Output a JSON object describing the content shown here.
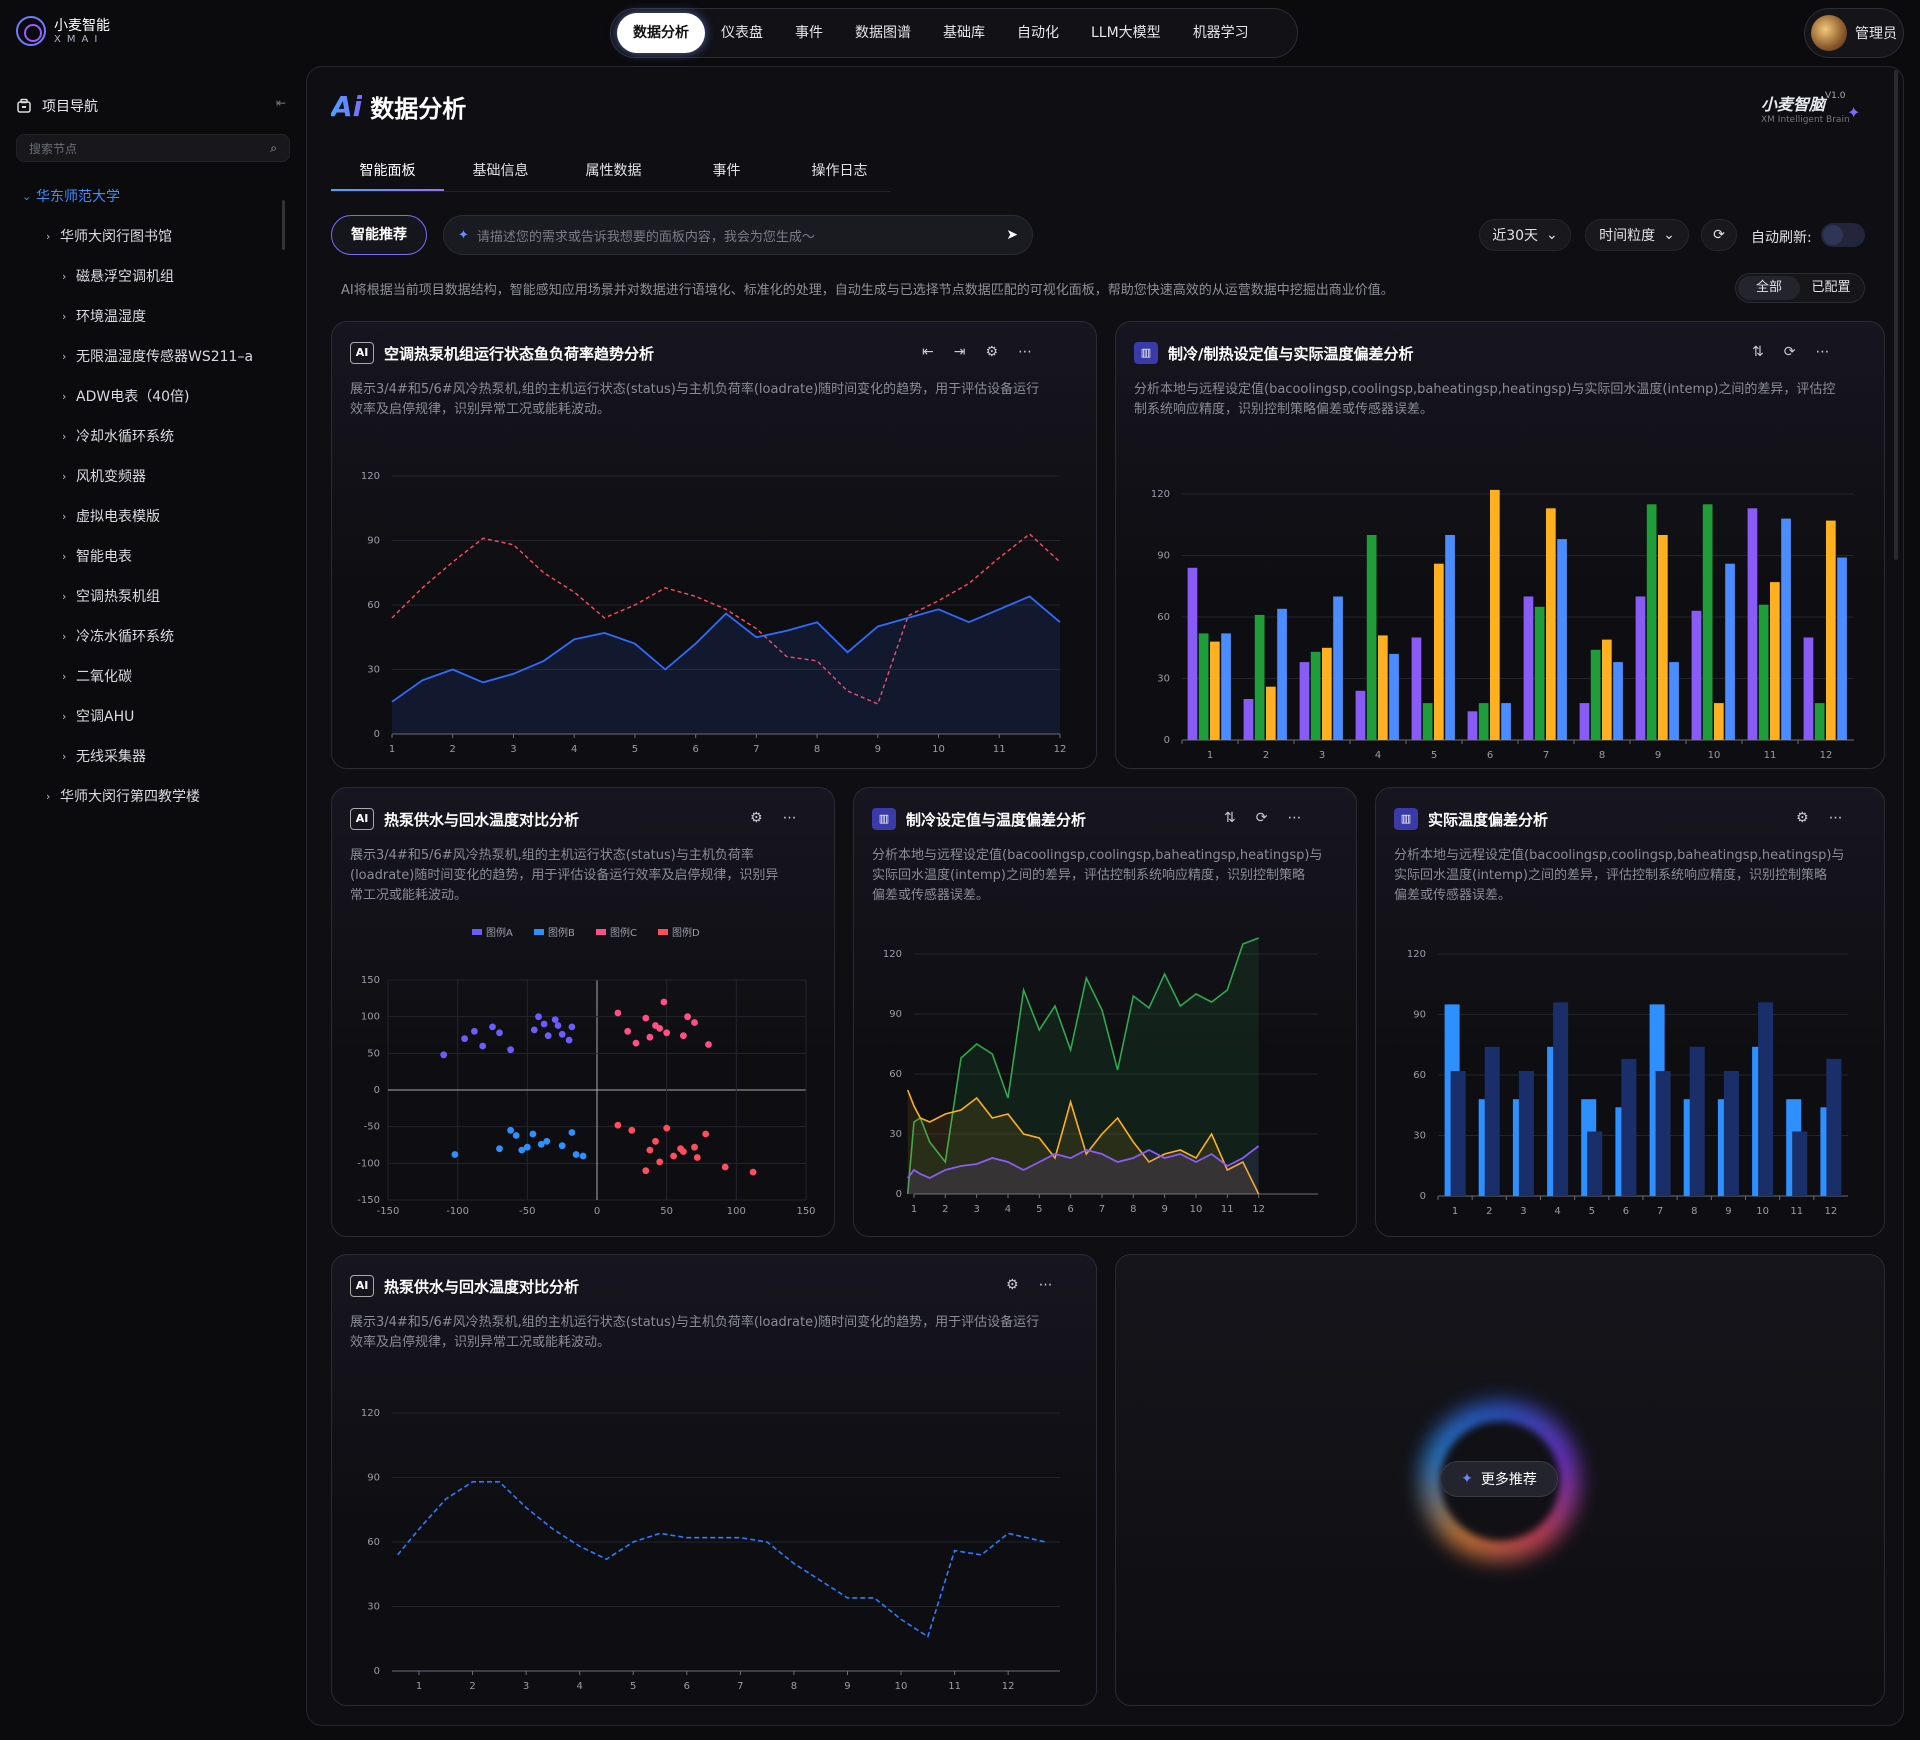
{
  "app": {
    "logo_title": "小麦智能",
    "logo_sub": "XMAI"
  },
  "nav": {
    "items": [
      "数据分析",
      "仪表盘",
      "事件",
      "数据图谱",
      "基础库",
      "自动化",
      "LLM大模型",
      "机器学习"
    ],
    "active": 0
  },
  "user": {
    "name": "管理员"
  },
  "sidebar": {
    "title": "项目导航",
    "search_placeholder": "搜索节点",
    "root": "华东师范大学",
    "level1": "华师大闵行图书馆",
    "children": [
      "磁悬浮空调机组",
      "环境温湿度",
      "无限温湿度传感器WS211–a",
      "ADW电表（40倍)",
      "冷却水循环系统",
      "风机变频器",
      "虚拟电表模版",
      "智能电表",
      "空调热泵机组",
      "冷冻水循环系统",
      "二氧化碳",
      "空调AHU",
      "无线采集器"
    ],
    "sibling": "华师大闵行第四教学楼"
  },
  "page": {
    "title": "数据分析",
    "brand": "小麦智脑",
    "brand_ver": "V1.0",
    "brand_sub": "XM Intelligent Brain",
    "tabs": [
      "智能面板",
      "基础信息",
      "属性数据",
      "事件",
      "操作日志"
    ],
    "recommend_btn": "智能推荐",
    "prompt_placeholder": "请描述您的需求或告诉我想要的面板内容，我会为您生成～",
    "range": "近30天",
    "granularity": "时间粒度",
    "auto_refresh": "自动刷新:",
    "description": "AI将根据当前项目数据结构，智能感知应用场景并对数据进行语境化、标准化的处理，自动生成与已选择节点数据匹配的可视化面板，帮助您快速高效的从运营数据中挖掘出商业价值。",
    "filter": [
      "全部",
      "已配置"
    ],
    "more": "更多推荐"
  },
  "cards": [
    {
      "title": "空调热泵机组运行状态鱼负荷率趋势分析",
      "desc_lines": [
        "展示3/4#和5/6#风冷热泵机,组的主机运行状态(status)与主机负荷率(loadrate)随时间变化的趋势，用于评估设备运行",
        "效率及启停规律，识别异常工况或能耗波动。"
      ]
    },
    {
      "title": "制冷/制热设定值与实际温度偏差分析",
      "desc_lines": [
        "分析本地与远程设定值(bacoolingsp,coolingsp,baheatingsp,heatingsp)与实际回水温度(intemp)之间的差异，评估控",
        "制系统响应精度，识别控制策略偏差或传感器误差。"
      ]
    },
    {
      "title": "热泵供水与回水温度对比分析",
      "desc_lines": [
        "展示3/4#和5/6#风冷热泵机,组的主机运行状态(status)与主机负荷率",
        "(loadrate)随时间变化的趋势，用于评估设备运行效率及启停规律，识别异",
        "常工况或能耗波动。"
      ]
    },
    {
      "title": "制冷设定值与温度偏差分析",
      "desc_lines": [
        "分析本地与远程设定值(bacoolingsp,coolingsp,baheatingsp,heatingsp)与",
        "实际回水温度(intemp)之间的差异，评估控制系统响应精度，识别控制策略",
        "偏差或传感器误差。"
      ]
    },
    {
      "title": "实际温度偏差分析",
      "desc_lines": [
        "分析本地与远程设定值(bacoolingsp,coolingsp,baheatingsp,heatingsp)与",
        "实际回水温度(intemp)之间的差异，评估控制系统响应精度，识别控制策略",
        "偏差或传感器误差。"
      ]
    },
    {
      "title": "热泵供水与回水温度对比分析",
      "desc_lines": [
        "展示3/4#和5/6#风冷热泵机,组的主机运行状态(status)与主机负荷率(loadrate)随时间变化的趋势，用于评估设备运行",
        "效率及启停规律，识别异常工况或能耗波动。"
      ]
    }
  ],
  "colors": {
    "blue": "#2f6bff",
    "red": "#ff4d5e",
    "purple": "#8a5cf6",
    "green": "#1f9d3a",
    "orange": "#ffb020",
    "skyblue": "#4b8dff",
    "lightblue": "#2e8fff",
    "pink": "#ff4d88"
  },
  "chart_data": [
    {
      "type": "line",
      "x": [
        1,
        1.5,
        2,
        2.5,
        3,
        3.5,
        4,
        4.5,
        5,
        5.5,
        6,
        6.5,
        7,
        7.5,
        8,
        8.5,
        9,
        9.5,
        10,
        10.5,
        11,
        11.5,
        12
      ],
      "series": [
        {
          "values": [
            54,
            68,
            80,
            91,
            88,
            75,
            66,
            54,
            60,
            68,
            64,
            58,
            49,
            36,
            34,
            20,
            14,
            55,
            62,
            70,
            82,
            93,
            80
          ]
        },
        {
          "values": [
            15,
            25,
            30,
            24,
            28,
            34,
            44,
            47,
            42,
            30,
            42,
            56,
            45,
            48,
            52,
            38,
            50,
            54,
            58,
            52,
            58,
            64,
            52
          ]
        }
      ],
      "ylim": [
        0,
        120
      ],
      "yticks": [
        0,
        30,
        60,
        90,
        120
      ],
      "grid": true
    },
    {
      "type": "bar",
      "categories": [
        "1",
        "2",
        "3",
        "4",
        "5",
        "6",
        "7",
        "8",
        "9",
        "10",
        "11",
        "12"
      ],
      "series": [
        {
          "values": [
            84,
            20,
            38,
            24,
            50,
            14,
            70,
            18,
            70,
            63,
            113,
            50
          ]
        },
        {
          "values": [
            52,
            61,
            43,
            100,
            18,
            18,
            65,
            44,
            115,
            115,
            66,
            18
          ]
        },
        {
          "values": [
            48,
            26,
            45,
            51,
            86,
            122,
            113,
            49,
            100,
            18,
            77,
            107
          ]
        },
        {
          "values": [
            52,
            64,
            70,
            42,
            100,
            18,
            98,
            38,
            38,
            86,
            108,
            89
          ]
        }
      ],
      "ylim": [
        0,
        120
      ],
      "yticks": [
        0,
        30,
        60,
        90,
        120
      ]
    },
    {
      "type": "scatter",
      "legend": [
        "图例A",
        "图例B",
        "图例C",
        "图例D"
      ],
      "series": [
        {
          "points": [
            [
              -110,
              48
            ],
            [
              -95,
              70
            ],
            [
              -88,
              80
            ],
            [
              -82,
              60
            ],
            [
              -75,
              86
            ],
            [
              -70,
              78
            ],
            [
              -62,
              55
            ],
            [
              -45,
              82
            ],
            [
              -42,
              100
            ],
            [
              -38,
              90
            ],
            [
              -35,
              74
            ],
            [
              -30,
              96
            ],
            [
              -28,
              88
            ],
            [
              -25,
              76
            ],
            [
              -20,
              68
            ],
            [
              -18,
              86
            ]
          ]
        },
        {
          "points": [
            [
              -102,
              -88
            ],
            [
              -70,
              -80
            ],
            [
              -62,
              -55
            ],
            [
              -58,
              -62
            ],
            [
              -54,
              -82
            ],
            [
              -50,
              -78
            ],
            [
              -46,
              -60
            ],
            [
              -40,
              -74
            ],
            [
              -36,
              -70
            ],
            [
              -25,
              -76
            ],
            [
              -18,
              -58
            ],
            [
              -15,
              -88
            ],
            [
              -10,
              -90
            ]
          ]
        },
        {
          "points": [
            [
              15,
              105
            ],
            [
              22,
              80
            ],
            [
              28,
              64
            ],
            [
              35,
              98
            ],
            [
              38,
              72
            ],
            [
              42,
              88
            ],
            [
              45,
              84
            ],
            [
              50,
              78
            ],
            [
              48,
              120
            ],
            [
              62,
              74
            ],
            [
              65,
              100
            ],
            [
              70,
              92
            ],
            [
              80,
              62
            ]
          ]
        },
        {
          "points": [
            [
              15,
              -48
            ],
            [
              25,
              -55
            ],
            [
              42,
              -70
            ],
            [
              38,
              -82
            ],
            [
              45,
              -98
            ],
            [
              50,
              -52
            ],
            [
              55,
              -90
            ],
            [
              60,
              -80
            ],
            [
              62,
              -84
            ],
            [
              70,
              -78
            ],
            [
              72,
              -92
            ],
            [
              78,
              -60
            ],
            [
              92,
              -105
            ],
            [
              112,
              -112
            ],
            [
              35,
              -110
            ]
          ]
        }
      ],
      "xlim": [
        -150,
        150
      ],
      "ylim": [
        -150,
        150
      ]
    },
    {
      "type": "line",
      "x": [
        0.8,
        1,
        1.2,
        1.5,
        2,
        2.5,
        3,
        3.5,
        4,
        4.5,
        5,
        5.5,
        6,
        6.5,
        7,
        7.5,
        8,
        8.5,
        9,
        9.5,
        10,
        10.5,
        11,
        11.5,
        12
      ],
      "series": [
        {
          "values": [
            0,
            36,
            38,
            26,
            16,
            68,
            75,
            70,
            48,
            102,
            82,
            94,
            72,
            108,
            92,
            62,
            99,
            93,
            110,
            94,
            100,
            96,
            102,
            125,
            128
          ]
        },
        {
          "values": [
            52,
            44,
            38,
            36,
            40,
            42,
            48,
            38,
            40,
            30,
            28,
            18,
            46,
            20,
            30,
            38,
            26,
            16,
            20,
            22,
            18,
            30,
            12,
            16,
            0
          ]
        },
        {
          "values": [
            8,
            12,
            10,
            8,
            12,
            14,
            15,
            18,
            16,
            12,
            16,
            20,
            18,
            22,
            20,
            16,
            18,
            22,
            18,
            20,
            16,
            20,
            14,
            18,
            24
          ]
        }
      ],
      "ylim": [
        0,
        120
      ],
      "yticks": [
        0,
        30,
        60,
        90,
        120
      ],
      "grid": true
    },
    {
      "type": "bar",
      "categories": [
        "1",
        "2",
        "3",
        "4",
        "5",
        "6",
        "7",
        "8",
        "9",
        "10",
        "11",
        "12"
      ],
      "series": [
        {
          "values": [
            95,
            48,
            48,
            74,
            48,
            44,
            95,
            48,
            48,
            74,
            48,
            44
          ]
        },
        {
          "values": [
            62,
            74,
            62,
            96,
            32,
            68,
            62,
            74,
            62,
            96,
            32,
            68
          ]
        }
      ],
      "ylim": [
        0,
        120
      ],
      "yticks": [
        0,
        30,
        60,
        90,
        120
      ]
    },
    {
      "type": "line",
      "x": [
        0.6,
        1,
        1.5,
        2,
        2.5,
        3,
        3.5,
        4,
        4.5,
        5,
        5.5,
        6,
        6.5,
        7,
        7.5,
        8,
        8.5,
        9,
        9.5,
        10,
        10.5,
        11,
        11.5,
        12,
        12.7
      ],
      "series": [
        {
          "values": [
            54,
            66,
            80,
            88,
            88,
            76,
            66,
            58,
            52,
            60,
            64,
            62,
            62,
            62,
            60,
            50,
            42,
            34,
            34,
            24,
            16,
            56,
            54,
            64,
            60
          ]
        }
      ],
      "ylim": [
        0,
        120
      ],
      "yticks": [
        0,
        30,
        60,
        90,
        120
      ],
      "grid": true
    }
  ]
}
